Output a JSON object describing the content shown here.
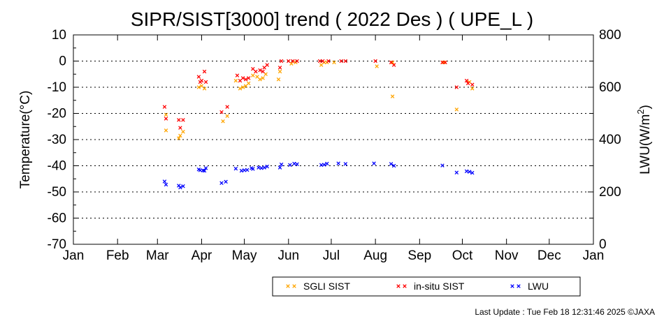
{
  "chart_data": {
    "type": "scatter",
    "title": "SIPR/SIST[3000] trend ( 2022 Des ) ( UPE_L )",
    "ylabel": "Temperature(°C)",
    "y2label": "LWU(W/m²)",
    "y2label_parts": {
      "base": "LWU(W/m",
      "sup": "2",
      "tail": ")"
    },
    "ylim": [
      -70,
      10
    ],
    "y2lim": [
      0,
      800
    ],
    "yticks": [
      "10",
      "0",
      "-10",
      "-20",
      "-30",
      "-40",
      "-50",
      "-60",
      "-70"
    ],
    "y2ticks": [
      "800",
      "600",
      "400",
      "200",
      "0"
    ],
    "y2tick_values": [
      800,
      600,
      400,
      200,
      0
    ],
    "xticks": [
      "Jan",
      "Feb",
      "Mar",
      "Apr",
      "May",
      "Jun",
      "Jul",
      "Aug",
      "Sep",
      "Oct",
      "Nov",
      "Dec",
      "Jan"
    ],
    "grid": "dotted horizontal",
    "legend_position": "bottom-right",
    "series": [
      {
        "name": "SGLI SIST",
        "color": "#ffa500",
        "axis": "left",
        "points": [
          [
            "2022-03-07",
            -20.5
          ],
          [
            "2022-03-07",
            -26.5
          ],
          [
            "2022-03-16",
            -29.5
          ],
          [
            "2022-03-17",
            -28.5
          ],
          [
            "2022-03-19",
            -27
          ],
          [
            "2022-03-30",
            -10
          ],
          [
            "2022-04-01",
            -9.5
          ],
          [
            "2022-04-03",
            -10.5
          ],
          [
            "2022-04-16",
            -23
          ],
          [
            "2022-04-19",
            -21
          ],
          [
            "2022-04-25",
            -7.5
          ],
          [
            "2022-04-28",
            -10.5
          ],
          [
            "2022-04-30",
            -10
          ],
          [
            "2022-05-02",
            -9.5
          ],
          [
            "2022-05-04",
            -8.5
          ],
          [
            "2022-05-07",
            -5.5
          ],
          [
            "2022-05-10",
            -6
          ],
          [
            "2022-05-12",
            -7
          ],
          [
            "2022-05-14",
            -6.5
          ],
          [
            "2022-05-16",
            -5
          ],
          [
            "2022-05-25",
            -7
          ],
          [
            "2022-05-26",
            -4
          ],
          [
            "2022-06-03",
            -1
          ],
          [
            "2022-06-06",
            -0.5
          ],
          [
            "2022-06-24",
            -1.5
          ],
          [
            "2022-06-26",
            -0.5
          ],
          [
            "2022-06-28",
            -0.5
          ],
          [
            "2022-07-03",
            -0.5
          ],
          [
            "2022-08-02",
            -2
          ],
          [
            "2022-08-13",
            -0.5
          ],
          [
            "2022-08-13",
            -13.5
          ],
          [
            "2022-09-18",
            -0.5
          ],
          [
            "2022-09-27",
            -18.5
          ],
          [
            "2022-10-06",
            -8
          ],
          [
            "2022-10-08",
            -10.5
          ]
        ]
      },
      {
        "name": "in-situ SIST",
        "color": "#ff0000",
        "axis": "left",
        "points": [
          [
            "2022-03-06",
            -17.5
          ],
          [
            "2022-03-07",
            -22
          ],
          [
            "2022-03-16",
            -22.5
          ],
          [
            "2022-03-17",
            -25.5
          ],
          [
            "2022-03-19",
            -22.5
          ],
          [
            "2022-03-30",
            -6
          ],
          [
            "2022-03-31",
            -8
          ],
          [
            "2022-04-01",
            -7.5
          ],
          [
            "2022-04-03",
            -4
          ],
          [
            "2022-04-04",
            -8
          ],
          [
            "2022-04-15",
            -19.5
          ],
          [
            "2022-04-19",
            -17.5
          ],
          [
            "2022-04-26",
            -5.5
          ],
          [
            "2022-04-28",
            -7.5
          ],
          [
            "2022-04-30",
            -6.5
          ],
          [
            "2022-05-02",
            -7
          ],
          [
            "2022-05-04",
            -6.5
          ],
          [
            "2022-05-07",
            -3
          ],
          [
            "2022-05-09",
            -4
          ],
          [
            "2022-05-12",
            -3.5
          ],
          [
            "2022-05-14",
            -4
          ],
          [
            "2022-05-15",
            -2.5
          ],
          [
            "2022-05-17",
            -1.5
          ],
          [
            "2022-05-26",
            -2.5
          ],
          [
            "2022-05-27",
            0
          ],
          [
            "2022-06-01",
            0
          ],
          [
            "2022-06-04",
            0
          ],
          [
            "2022-06-07",
            0
          ],
          [
            "2022-06-23",
            0
          ],
          [
            "2022-06-25",
            0
          ],
          [
            "2022-06-29",
            0
          ],
          [
            "2022-07-08",
            0
          ],
          [
            "2022-07-11",
            0
          ],
          [
            "2022-08-01",
            0
          ],
          [
            "2022-08-12",
            -0.5
          ],
          [
            "2022-08-14",
            -1.5
          ],
          [
            "2022-09-17",
            -0.5
          ],
          [
            "2022-09-19",
            -0.5
          ],
          [
            "2022-09-27",
            -10
          ],
          [
            "2022-10-04",
            -7.5
          ],
          [
            "2022-10-05",
            -8.5
          ],
          [
            "2022-10-08",
            -9
          ]
        ]
      },
      {
        "name": "LWU",
        "color": "#0000ff",
        "axis": "right",
        "points": [
          [
            "2022-03-06",
            240
          ],
          [
            "2022-03-07",
            228
          ],
          [
            "2022-03-16",
            224
          ],
          [
            "2022-03-17",
            217
          ],
          [
            "2022-03-19",
            222
          ],
          [
            "2022-03-30",
            286
          ],
          [
            "2022-03-31",
            283
          ],
          [
            "2022-04-02",
            282
          ],
          [
            "2022-04-03",
            281
          ],
          [
            "2022-04-04",
            291
          ],
          [
            "2022-04-15",
            234
          ],
          [
            "2022-04-18",
            239
          ],
          [
            "2022-04-25",
            289
          ],
          [
            "2022-04-29",
            281
          ],
          [
            "2022-05-01",
            283
          ],
          [
            "2022-05-03",
            284
          ],
          [
            "2022-05-06",
            291
          ],
          [
            "2022-05-07",
            288
          ],
          [
            "2022-05-11",
            293
          ],
          [
            "2022-05-13",
            291
          ],
          [
            "2022-05-15",
            293
          ],
          [
            "2022-05-17",
            297
          ],
          [
            "2022-05-26",
            293
          ],
          [
            "2022-05-27",
            305
          ],
          [
            "2022-06-02",
            303
          ],
          [
            "2022-06-05",
            308
          ],
          [
            "2022-06-07",
            306
          ],
          [
            "2022-06-24",
            303
          ],
          [
            "2022-06-26",
            304
          ],
          [
            "2022-06-28",
            308
          ],
          [
            "2022-07-06",
            309
          ],
          [
            "2022-07-11",
            307
          ],
          [
            "2022-07-31",
            309
          ],
          [
            "2022-08-12",
            307
          ],
          [
            "2022-08-14",
            300
          ],
          [
            "2022-09-17",
            301
          ],
          [
            "2022-09-27",
            274
          ],
          [
            "2022-10-04",
            279
          ],
          [
            "2022-10-06",
            277
          ],
          [
            "2022-10-08",
            273
          ]
        ]
      }
    ]
  },
  "footer": {
    "last_update": "Last Update : Tue Feb 18 12:31:46 2025  ©JAXA"
  }
}
